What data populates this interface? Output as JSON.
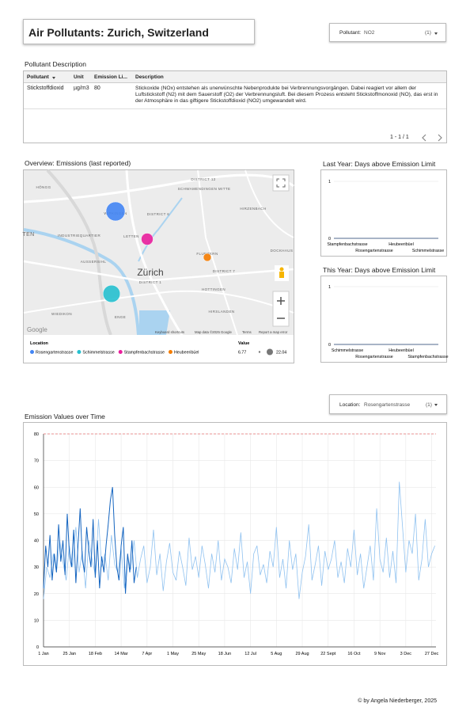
{
  "header": {
    "title": "Air Pollutants: Zurich, Switzerland"
  },
  "filters": {
    "pollutant": {
      "label": "Pollutant:",
      "value": "NO2",
      "count": "(1)"
    },
    "location": {
      "label": "Location:",
      "value": "Rosengartenstrasse",
      "count": "(1)"
    }
  },
  "table": {
    "title": "Pollutant Description",
    "columns": [
      "Pollutant",
      "Unit",
      "Emission Li...",
      "Description"
    ],
    "rows": [
      [
        "Stickstoffdioxid",
        "µg/m3",
        "80",
        "Stickoxide (NOx) entstehen als unerwünschte Nebenprodukte bei Verbrennungsvorgängen. Dabei reagiert vor allem der Luftstickstoff (N2) mit dem Sauerstoff (O2) der Verbrennungsluft. Bei diesem Prozess entsteht Stickstoffmonoxid (NO), das erst in der Atmosphäre in das giftigere Stickstoffdioxid (NO2) umgewandelt wird."
      ]
    ],
    "pagination": "1 - 1 / 1"
  },
  "map": {
    "title": "Overview: Emissions (last reported)",
    "labels": [
      "HÖNGG",
      "WIPKINGEN",
      "LETTEN",
      "INDUSTRIEQUARTIER",
      "AUSSERSIHL",
      "Zürich",
      "DISTRICT 1",
      "ENGE",
      "WIEDIKON",
      "DISTRICT 6",
      "DISTRICT 7",
      "DISTRICT 12",
      "SCHWAMENDINGEN MITTE",
      "HIRZENBACH",
      "FLUNTERN",
      "HOTTINGEN",
      "HIRSLANDEN",
      "DOCKHAUS",
      "TEN"
    ],
    "attribution": [
      "Google",
      "Keyboard shortcuts",
      "Map data ©2025 Google",
      "Terms",
      "Report a map error"
    ],
    "legend_title": "Location",
    "size_title": "Value",
    "size_range": [
      6.77,
      22.04
    ],
    "points": [
      {
        "name": "Rosengartenstrasse",
        "color": "#4285f4",
        "value": 22.04
      },
      {
        "name": "Schimmelstrasse",
        "color": "#26c0cf",
        "value": 19.5
      },
      {
        "name": "Stampfenbachstrasse",
        "color": "#e91e9c",
        "value": 12.3
      },
      {
        "name": "Heubeeribüel",
        "color": "#f57c00",
        "value": 6.77
      }
    ]
  },
  "chart_data": [
    {
      "type": "bar",
      "title": "Last Year: Days above Emission Limit",
      "categories": [
        "Stampfenbachstrasse",
        "Rosengartenstrasse",
        "Heubeeribüel",
        "Schimmelstrasse"
      ],
      "values": [
        0,
        0,
        0,
        0
      ],
      "color": "#1a3a6b",
      "ylim": [
        0,
        1
      ],
      "yticks": [
        0,
        1
      ],
      "grid": true
    },
    {
      "type": "bar",
      "title": "This Year: Days above Emission Limit",
      "categories": [
        "Schimmelstrasse",
        "Rosengartenstrasse",
        "Heubeeribüel",
        "Stampfenbachstrasse"
      ],
      "values": [
        0,
        0,
        0,
        0
      ],
      "color": "#1a3a6b",
      "ylim": [
        0,
        1
      ],
      "yticks": [
        0,
        1
      ],
      "grid": true
    },
    {
      "type": "line",
      "title": "Emission Values over Time",
      "xlim": [
        0,
        364
      ],
      "xticks": [
        {
          "value": 0,
          "label": "1 Jan"
        },
        {
          "value": 24,
          "label": "25 Jan"
        },
        {
          "value": 48,
          "label": "18 Feb"
        },
        {
          "value": 72,
          "label": "14 Mar"
        },
        {
          "value": 96,
          "label": "7 Apr"
        },
        {
          "value": 120,
          "label": "1 May"
        },
        {
          "value": 144,
          "label": "25 May"
        },
        {
          "value": 168,
          "label": "18 Jun"
        },
        {
          "value": 192,
          "label": "12 Jul"
        },
        {
          "value": 216,
          "label": "5 Aug"
        },
        {
          "value": 240,
          "label": "29 Aug"
        },
        {
          "value": 264,
          "label": "22 Sept"
        },
        {
          "value": 288,
          "label": "16 Oct"
        },
        {
          "value": 312,
          "label": "9 Nov"
        },
        {
          "value": 336,
          "label": "3 Dec"
        },
        {
          "value": 360,
          "label": "27 Dec"
        }
      ],
      "ylim": [
        0,
        80
      ],
      "yticks": [
        0,
        10,
        20,
        30,
        40,
        50,
        60,
        70,
        80
      ],
      "grid": true,
      "limit": 80,
      "limit_color": "#e57373",
      "series": [
        {
          "color": "#90c2f0",
          "x": [
            0,
            3,
            6,
            9,
            12,
            15,
            18,
            21,
            24,
            27,
            30,
            33,
            36,
            39,
            42,
            45,
            48,
            51,
            54,
            57,
            60,
            63,
            66,
            69,
            72,
            75,
            78,
            81,
            84,
            87,
            90,
            93,
            96,
            99,
            102,
            105,
            108,
            111,
            114,
            117,
            120,
            123,
            126,
            129,
            132,
            135,
            138,
            141,
            144,
            147,
            150,
            153,
            156,
            159,
            162,
            165,
            168,
            171,
            174,
            177,
            180,
            183,
            186,
            189,
            192,
            195,
            198,
            201,
            204,
            207,
            210,
            213,
            216,
            219,
            222,
            225,
            228,
            231,
            234,
            237,
            240,
            243,
            246,
            249,
            252,
            255,
            258,
            261,
            264,
            267,
            270,
            273,
            276,
            279,
            282,
            285,
            288,
            291,
            294,
            297,
            300,
            303,
            306,
            309,
            312,
            315,
            318,
            321,
            324,
            327,
            330,
            333,
            336,
            339,
            342,
            345,
            348,
            351,
            354,
            357,
            360,
            363
          ],
          "values": [
            18,
            30,
            26,
            35,
            28,
            40,
            32,
            25,
            38,
            30,
            45,
            28,
            36,
            22,
            40,
            33,
            27,
            48,
            30,
            35,
            25,
            42,
            31,
            28,
            37,
            22,
            34,
            29,
            40,
            26,
            33,
            38,
            24,
            30,
            44,
            27,
            35,
            21,
            32,
            39,
            28,
            25,
            36,
            30,
            23,
            41,
            29,
            34,
            26,
            38,
            31,
            22,
            35,
            28,
            40,
            25,
            33,
            30,
            24,
            37,
            29,
            43,
            26,
            32,
            20,
            35,
            38,
            27,
            31,
            24,
            36,
            30,
            45,
            26,
            33,
            22,
            40,
            29,
            35,
            18,
            28,
            34,
            46,
            25,
            31,
            38,
            23,
            36,
            29,
            33,
            40,
            26,
            32,
            24,
            37,
            30,
            44,
            27,
            35,
            22,
            30,
            38,
            25,
            52,
            33,
            28,
            41,
            26,
            36,
            24,
            62,
            45,
            28,
            40,
            35,
            50,
            25,
            33,
            48,
            30,
            35,
            38
          ]
        },
        {
          "color": "#1565c0",
          "x": [
            0,
            2,
            4,
            6,
            8,
            10,
            12,
            14,
            16,
            18,
            20,
            22,
            24,
            26,
            28,
            30,
            32,
            34,
            36,
            38,
            40,
            42,
            44,
            46,
            48,
            50,
            52,
            54,
            56,
            58,
            60,
            62,
            64,
            66,
            68,
            70,
            72,
            74,
            76,
            78,
            80,
            82,
            84,
            86
          ],
          "values": [
            22,
            38,
            30,
            42,
            25,
            35,
            28,
            46,
            32,
            40,
            27,
            50,
            35,
            30,
            44,
            24,
            38,
            52,
            33,
            28,
            45,
            36,
            30,
            48,
            26,
            40,
            22,
            34,
            28,
            38,
            46,
            55,
            60,
            42,
            30,
            25,
            38,
            45,
            20,
            35,
            28,
            40,
            24,
            30
          ]
        }
      ]
    }
  ],
  "footer": "© by Angela Niederberger, 2025"
}
